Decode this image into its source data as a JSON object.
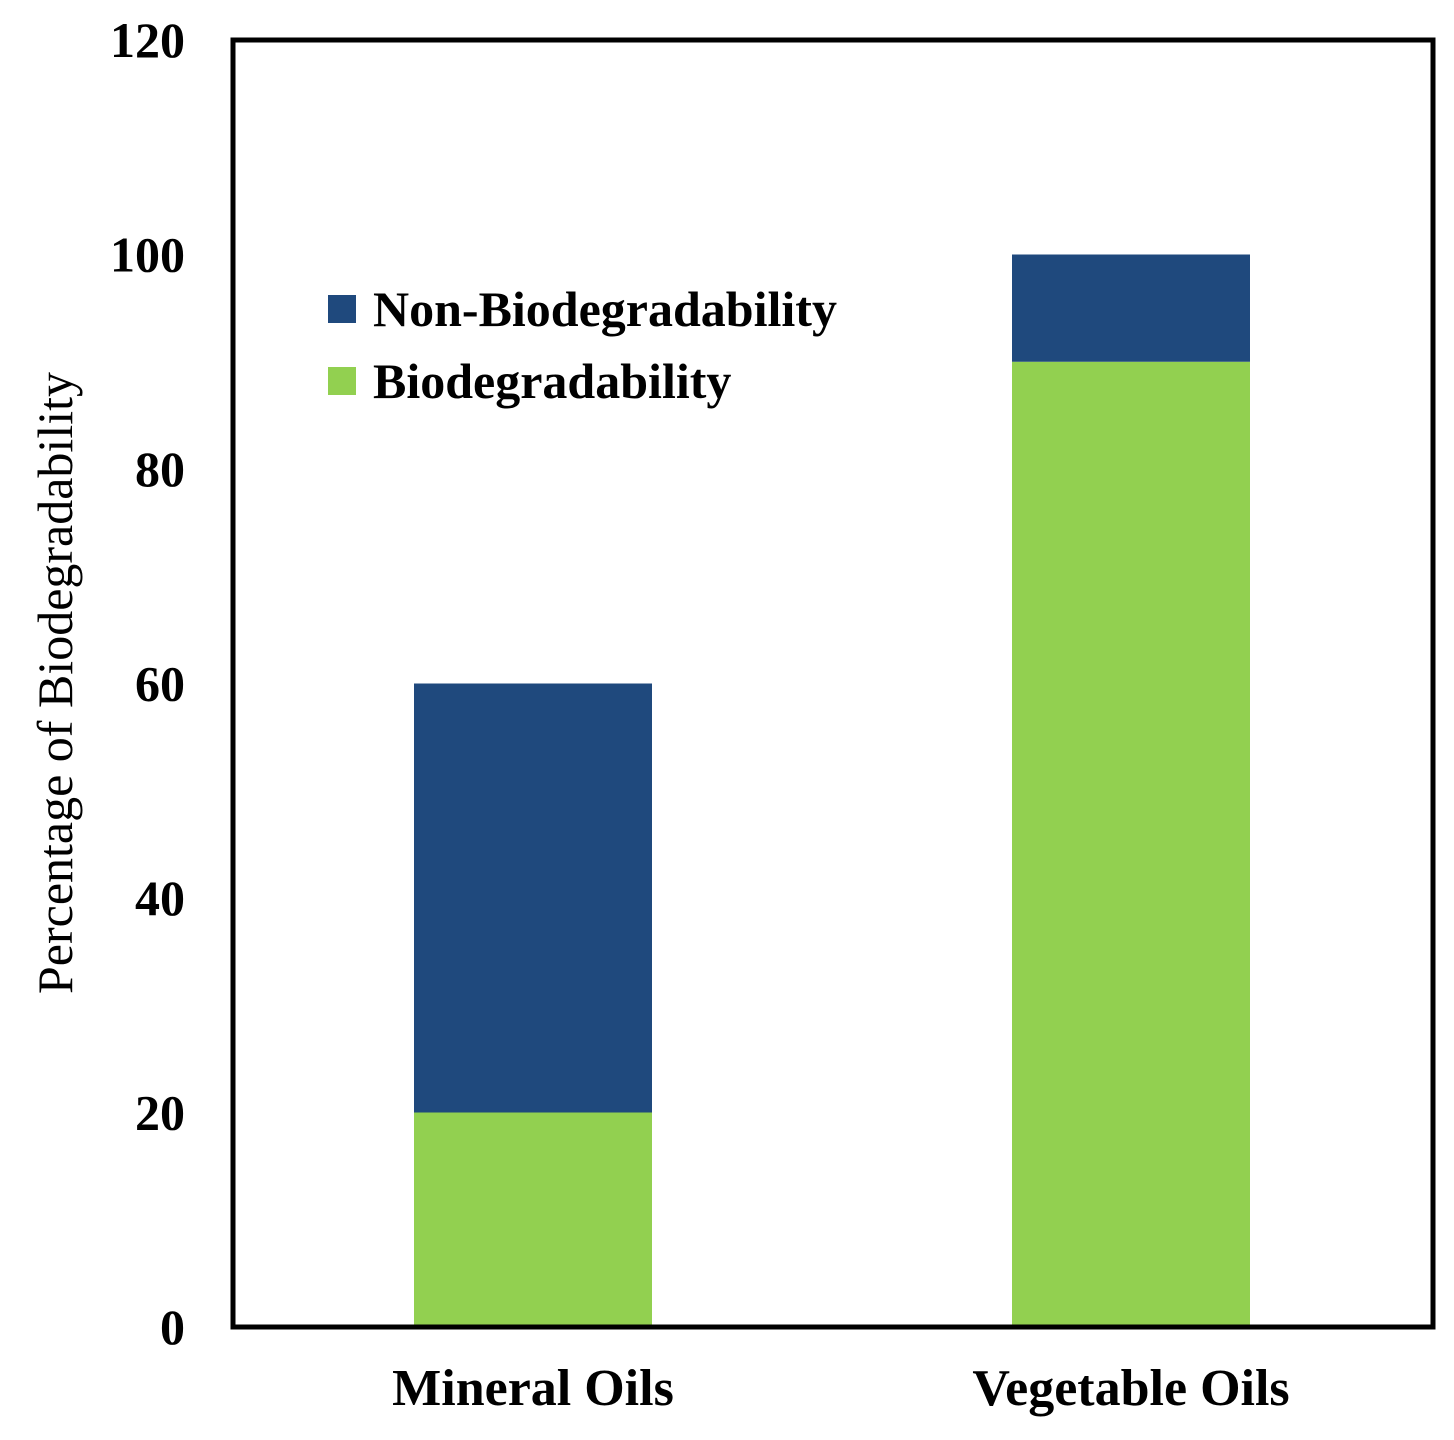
{
  "chart_data": {
    "type": "bar",
    "stacked": true,
    "title": "",
    "xlabel": "",
    "ylabel": "Percentage of Biodegradability",
    "ylim": [
      0,
      120
    ],
    "yticks": [
      0,
      20,
      40,
      60,
      80,
      100,
      120
    ],
    "grid": false,
    "categories": [
      "Mineral Oils",
      "Vegetable Oils"
    ],
    "series": [
      {
        "name": "Biodegradability",
        "color": "#92d050",
        "values": [
          20,
          90
        ]
      },
      {
        "name": "Non-Biodegradability",
        "color": "#1f497d",
        "values": [
          40,
          10
        ]
      }
    ],
    "legend": {
      "placement": "top-left",
      "entries": [
        "Non-Biodegradability",
        "Biodegradability"
      ]
    }
  }
}
